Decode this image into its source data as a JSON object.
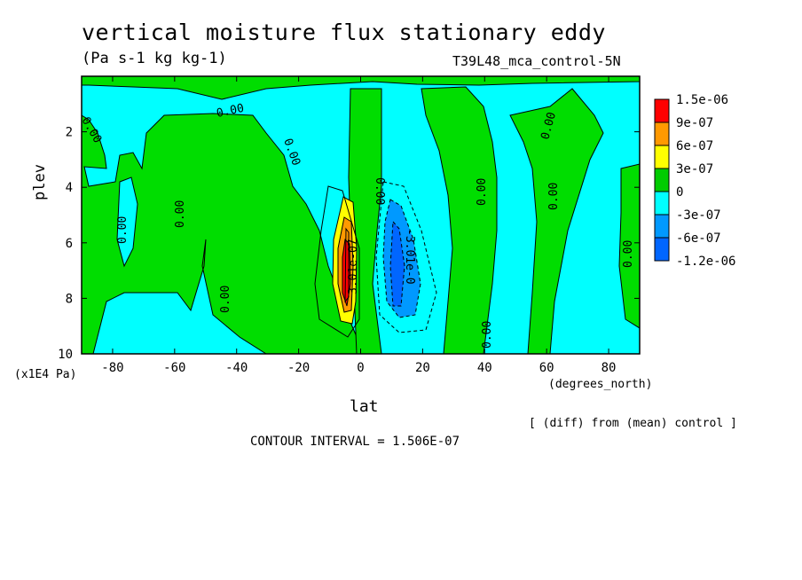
{
  "chart_data": {
    "type": "contour",
    "title": "vertical moisture flux stationary eddy",
    "units": "(Pa s-1 kg kg-1)",
    "run_label": "T39L48_mca_control-5N",
    "xlabel": "lat",
    "x_units": "(degrees_north)",
    "ylabel": "plev",
    "y_units": "(x1E4 Pa)",
    "xlim": [
      -90,
      90
    ],
    "ylim": [
      10,
      0
    ],
    "x_ticks": [
      -80,
      -60,
      -40,
      -20,
      0,
      20,
      40,
      60,
      80
    ],
    "y_ticks": [
      2,
      4,
      6,
      8,
      10
    ],
    "contour_labels": [
      "0.00",
      "3.01e-07",
      "-3.01e-0"
    ],
    "colorbar": {
      "levels": [
        "1.5e-06",
        "9e-07",
        "6e-07",
        "3e-07",
        "0",
        "-3e-07",
        "-6e-07",
        "-1.2e-06"
      ],
      "colors": [
        "#ff0000",
        "#ff9900",
        "#ffff00",
        "#00cc00",
        "#00ffff",
        "#0099ff",
        "#0066ff"
      ]
    },
    "diff_note": "[ (diff) from (mean) control ]",
    "contour_interval": "CONTOUR INTERVAL = 1.506E-07"
  },
  "colors": {
    "positive_small": "#00dd00",
    "negative_small": "#00ffff",
    "positive_mid": "#ffff00",
    "positive_high": "#ff9900",
    "positive_max": "#ff0000",
    "negative_mid": "#0099ff",
    "negative_high": "#0066ff"
  }
}
